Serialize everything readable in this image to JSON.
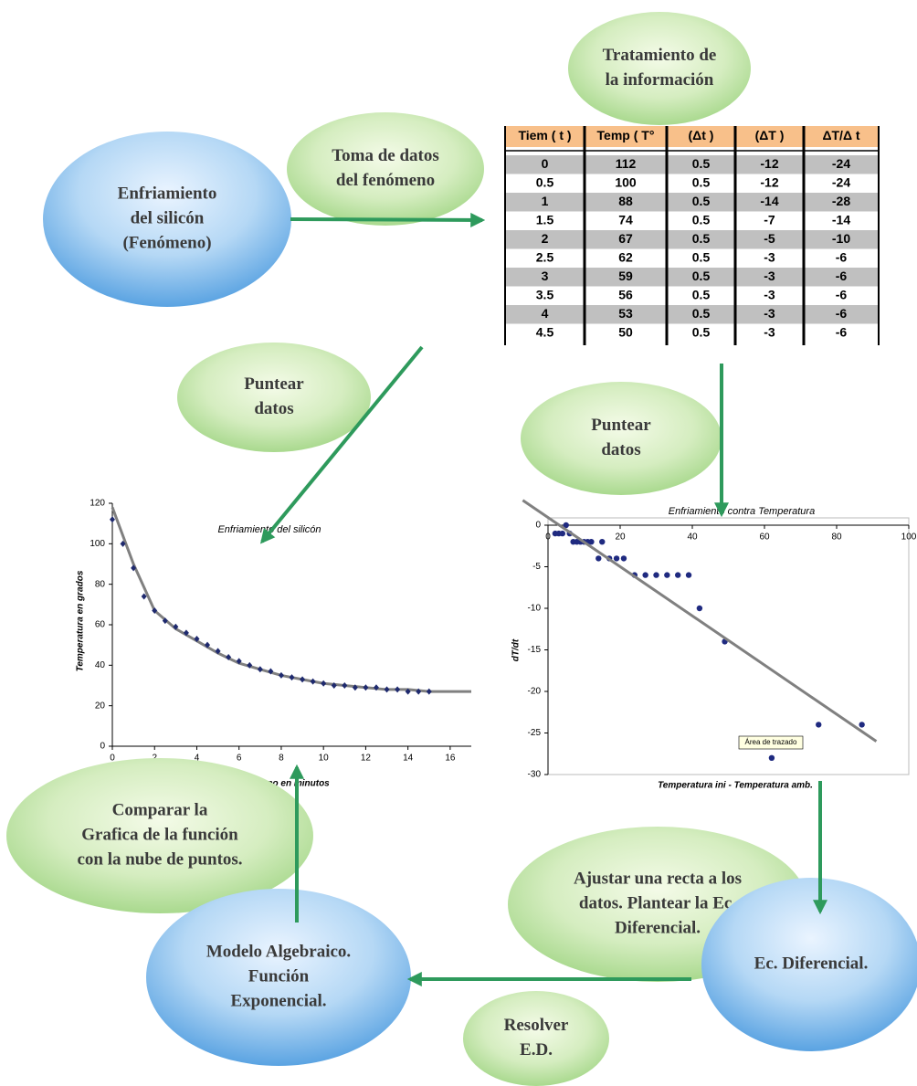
{
  "nodes": [
    {
      "lines": [
        "Tratamiento de",
        "la información"
      ]
    },
    {
      "lines": [
        "Toma de datos",
        "del fenómeno"
      ]
    },
    {
      "lines": [
        "Enfriamiento",
        "del silicón",
        "(Fenómeno)"
      ]
    },
    {
      "lines": [
        "Puntear",
        "datos"
      ]
    },
    {
      "lines": [
        "Puntear",
        "datos"
      ]
    },
    {
      "lines": [
        "Comparar la",
        "Grafica de la función",
        "con la nube de puntos."
      ]
    },
    {
      "lines": [
        "Ajustar una recta a los",
        "datos. Plantear la Ec.",
        "Diferencial."
      ]
    },
    {
      "lines": [
        "Modelo Algebraico.",
        "Función",
        "Exponencial."
      ]
    },
    {
      "lines": [
        "Ec. Diferencial."
      ]
    },
    {
      "lines": [
        "Resolver",
        "E.D."
      ]
    }
  ],
  "table": {
    "header": [
      "Tiem ( t )",
      "Temp ( T°",
      "(Δt )",
      "(ΔT )",
      "ΔT/Δ t"
    ],
    "rows": [
      [
        0,
        112,
        0.5,
        -12,
        -24
      ],
      [
        0.5,
        100,
        0.5,
        -12,
        -24
      ],
      [
        1,
        88,
        0.5,
        -14,
        -28
      ],
      [
        1.5,
        74,
        0.5,
        -7,
        -14
      ],
      [
        2,
        67,
        0.5,
        -5,
        -10
      ],
      [
        2.5,
        62,
        0.5,
        -3,
        -6
      ],
      [
        3,
        59,
        0.5,
        -3,
        -6
      ],
      [
        3.5,
        56,
        0.5,
        -3,
        -6
      ],
      [
        4,
        53,
        0.5,
        -3,
        -6
      ],
      [
        4.5,
        50,
        0.5,
        -3,
        -6
      ]
    ]
  },
  "chart_data": [
    {
      "type": "scatter",
      "title": "Enfriamiento del silicón",
      "x_label": "Tiempo en minutos",
      "y_label": "Temperatura en grados",
      "xlim": [
        0,
        17
      ],
      "xticks": [
        0,
        2,
        4,
        6,
        8,
        10,
        12,
        14,
        16
      ],
      "ylim": [
        0,
        120
      ],
      "yticks": [
        0,
        20,
        40,
        60,
        80,
        100,
        120
      ],
      "xaxis": "bottom",
      "frame": false,
      "series": [
        {
          "type": "line",
          "color": "#808080",
          "x": [
            0,
            1,
            2,
            3,
            4,
            5,
            6,
            7,
            8,
            9,
            10,
            11,
            12,
            13,
            14,
            15,
            16,
            17
          ],
          "values": [
            118,
            90,
            67,
            58,
            52,
            46,
            41,
            38,
            35,
            33,
            31,
            30,
            29,
            28,
            28,
            27,
            27,
            27
          ]
        },
        {
          "type": "scatter",
          "marker": "diamond",
          "color": "#1f2a6e",
          "x": [
            0,
            0.5,
            1,
            1.5,
            2,
            2.5,
            3,
            3.5,
            4,
            4.5,
            5,
            5.5,
            6,
            6.5,
            7,
            7.5,
            8,
            8.5,
            9,
            9.5,
            10,
            10.5,
            11,
            11.5,
            12,
            12.5,
            13,
            13.5,
            14,
            14.5,
            15
          ],
          "values": [
            112,
            100,
            88,
            74,
            67,
            62,
            59,
            56,
            53,
            50,
            47,
            44,
            42,
            40,
            38,
            37,
            35,
            34,
            33,
            32,
            31,
            30,
            30,
            29,
            29,
            29,
            28,
            28,
            27,
            27,
            27
          ]
        }
      ]
    },
    {
      "type": "scatter",
      "title": "Enfriamiento contra Temperatura",
      "x_label": "Temperatura ini - Temperatura amb.",
      "y_label": "dT/dt",
      "xlim": [
        0,
        100
      ],
      "xticks": [
        0,
        20,
        40,
        60,
        80,
        100
      ],
      "ylim": [
        -30,
        0
      ],
      "yticks": [
        0,
        -5,
        -10,
        -15,
        -20,
        -25,
        -30
      ],
      "xaxis": "top",
      "frame": true,
      "annotation": "Área de trazado",
      "series": [
        {
          "type": "scatter",
          "marker": "circle",
          "color": "#1f2a80",
          "x": [
            2,
            3,
            4,
            5,
            6,
            7,
            8,
            9,
            10,
            11,
            12,
            14,
            15,
            17,
            19,
            21,
            24,
            27,
            30,
            33,
            36,
            39,
            42,
            49,
            62,
            75,
            87
          ],
          "values": [
            -1,
            -1,
            -1,
            0,
            -1,
            -2,
            -2,
            -2,
            -2,
            -2,
            -2,
            -4,
            -2,
            -4,
            -4,
            -4,
            -6,
            -6,
            -6,
            -6,
            -6,
            -6,
            -10,
            -14,
            -28,
            -24,
            -24
          ]
        },
        {
          "type": "line",
          "color": "#808080",
          "x": [
            -7,
            91
          ],
          "values": [
            3,
            -26
          ]
        }
      ]
    }
  ]
}
